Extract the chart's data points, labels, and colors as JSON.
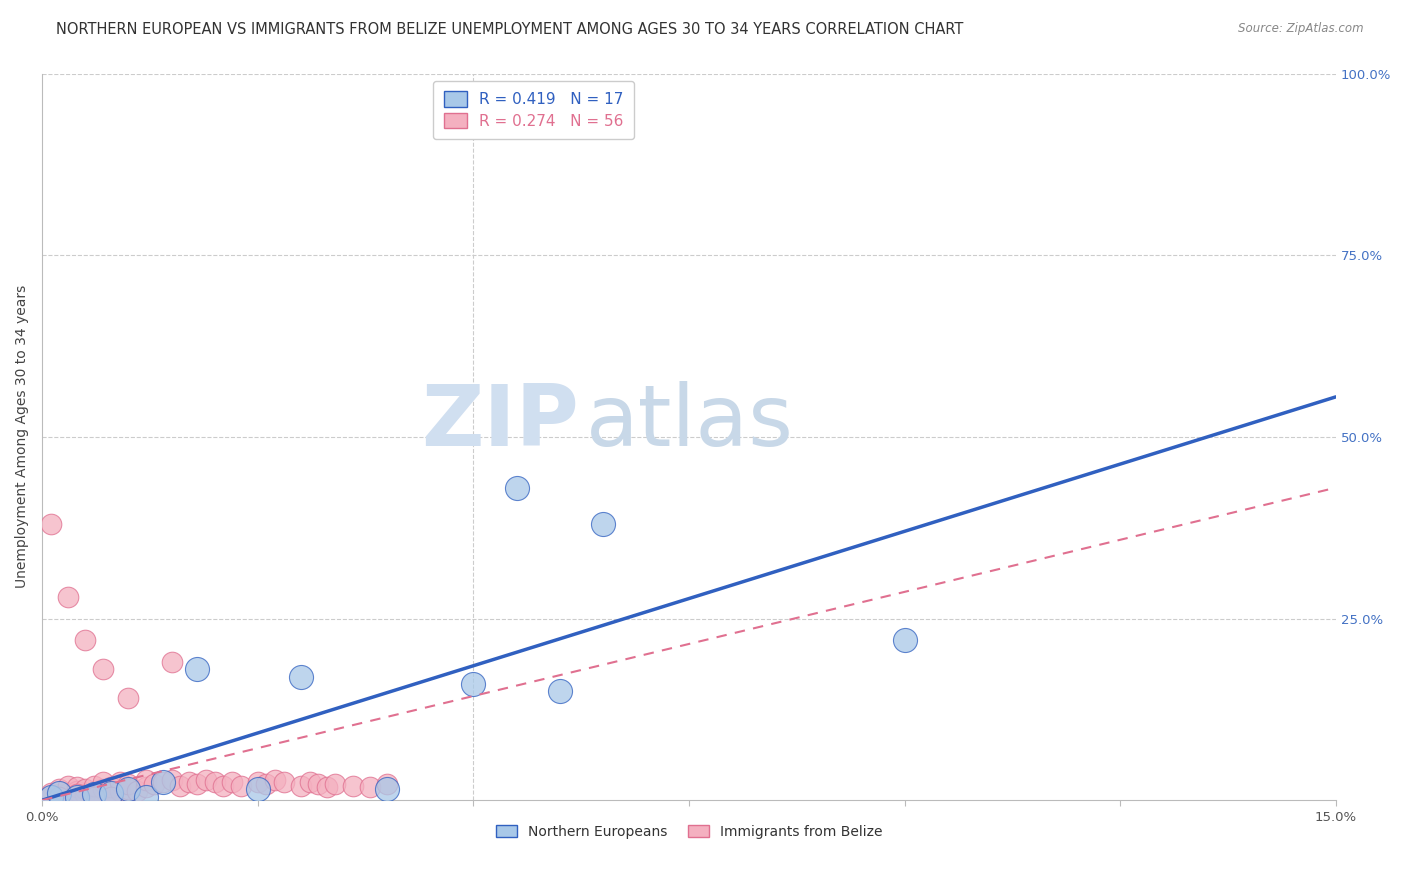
{
  "title": "NORTHERN EUROPEAN VS IMMIGRANTS FROM BELIZE UNEMPLOYMENT AMONG AGES 30 TO 34 YEARS CORRELATION CHART",
  "source": "Source: ZipAtlas.com",
  "ylabel": "Unemployment Among Ages 30 to 34 years",
  "xlim": [
    0.0,
    0.15
  ],
  "ylim": [
    0.0,
    1.0
  ],
  "legend_label1": "Northern Europeans",
  "legend_label2": "Immigrants from Belize",
  "R1": 0.419,
  "N1": 17,
  "R2": 0.274,
  "N2": 56,
  "color_blue": "#a8c8e8",
  "color_pink": "#f4b0c0",
  "color_blue_line": "#3060c0",
  "color_pink_line": "#e07090",
  "watermark_zip": "ZIP",
  "watermark_atlas": "atlas",
  "blue_x": [
    0.001,
    0.002,
    0.004,
    0.006,
    0.008,
    0.01,
    0.012,
    0.014,
    0.018,
    0.025,
    0.03,
    0.04,
    0.05,
    0.055,
    0.06,
    0.1,
    0.065
  ],
  "blue_y": [
    0.005,
    0.01,
    0.005,
    0.008,
    0.01,
    0.015,
    0.005,
    0.025,
    0.18,
    0.015,
    0.17,
    0.015,
    0.16,
    0.43,
    0.15,
    0.22,
    0.38
  ],
  "pink_x": [
    0.001,
    0.001,
    0.002,
    0.002,
    0.003,
    0.003,
    0.004,
    0.004,
    0.005,
    0.005,
    0.006,
    0.006,
    0.007,
    0.007,
    0.008,
    0.008,
    0.009,
    0.009,
    0.01,
    0.01,
    0.011,
    0.012,
    0.012,
    0.013,
    0.014,
    0.015,
    0.016,
    0.017,
    0.018,
    0.019,
    0.02,
    0.021,
    0.022,
    0.023,
    0.025,
    0.026,
    0.027,
    0.028,
    0.03,
    0.031,
    0.032,
    0.033,
    0.034,
    0.036,
    0.038,
    0.04,
    0.001,
    0.003,
    0.005,
    0.007,
    0.01,
    0.015,
    0.002,
    0.008,
    0.006,
    0.004
  ],
  "pink_y": [
    0.005,
    0.01,
    0.008,
    0.015,
    0.01,
    0.02,
    0.012,
    0.018,
    0.008,
    0.015,
    0.01,
    0.02,
    0.015,
    0.025,
    0.01,
    0.018,
    0.012,
    0.025,
    0.015,
    0.022,
    0.012,
    0.018,
    0.028,
    0.022,
    0.025,
    0.028,
    0.02,
    0.025,
    0.022,
    0.028,
    0.025,
    0.02,
    0.025,
    0.02,
    0.025,
    0.022,
    0.028,
    0.025,
    0.02,
    0.025,
    0.022,
    0.018,
    0.022,
    0.02,
    0.018,
    0.022,
    0.38,
    0.28,
    0.22,
    0.18,
    0.14,
    0.19,
    0.005,
    0.005,
    0.005,
    0.008
  ],
  "blue_line_x0": 0.0,
  "blue_line_y0": 0.0,
  "blue_line_x1": 0.15,
  "blue_line_y1": 0.555,
  "pink_line_x0": 0.0,
  "pink_line_y0": 0.0,
  "pink_line_x1": 0.15,
  "pink_line_y1": 0.43,
  "yticks": [
    0.0,
    0.25,
    0.5,
    0.75,
    1.0
  ],
  "ytick_labels": [
    "",
    "25.0%",
    "50.0%",
    "75.0%",
    "100.0%"
  ],
  "xtick_positions": [
    0.0,
    0.025,
    0.05,
    0.075,
    0.1,
    0.125,
    0.15
  ],
  "grid_yticks": [
    0.25,
    0.5,
    0.75,
    1.0
  ],
  "vgrid_x": [
    0.05
  ],
  "grid_color": "#cccccc",
  "background_color": "#ffffff",
  "title_fontsize": 10.5,
  "axis_label_fontsize": 10,
  "tick_fontsize": 9.5,
  "right_tick_color": "#4472c4"
}
